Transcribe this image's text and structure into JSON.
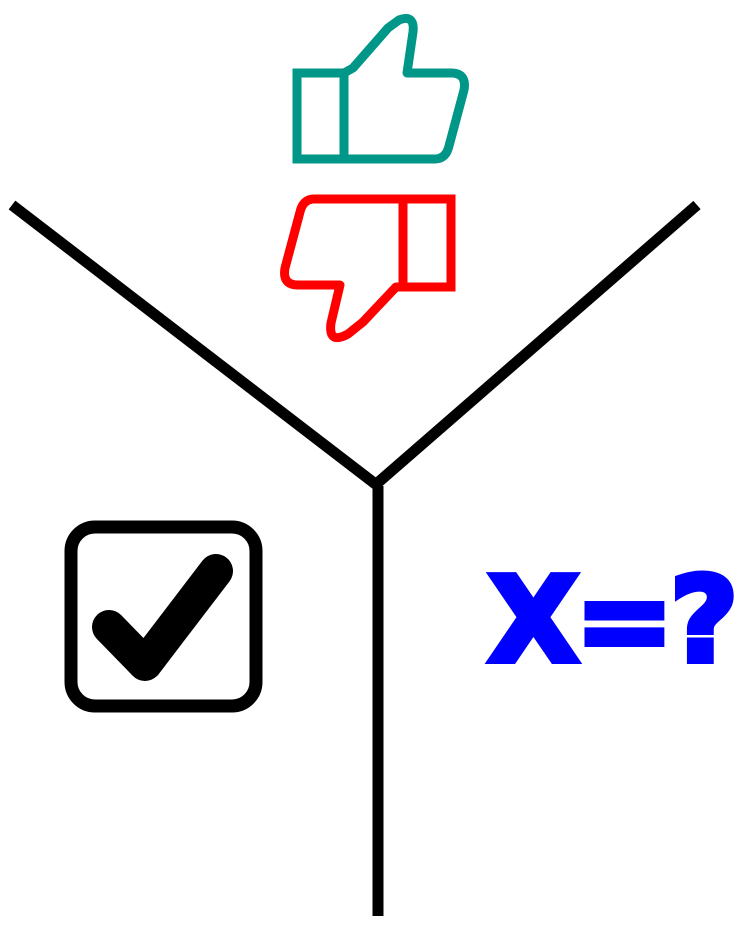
{
  "colors": {
    "divider": "#000000",
    "thumbs_up": "#009688",
    "thumbs_down": "#ff0000",
    "checkbox": "#000000",
    "equation": "#0000ff"
  },
  "icons": {
    "top": [
      "thumbs-up-icon",
      "thumbs-down-icon"
    ],
    "left": "checked-checkbox-icon"
  },
  "equation": {
    "text": "X=?"
  }
}
